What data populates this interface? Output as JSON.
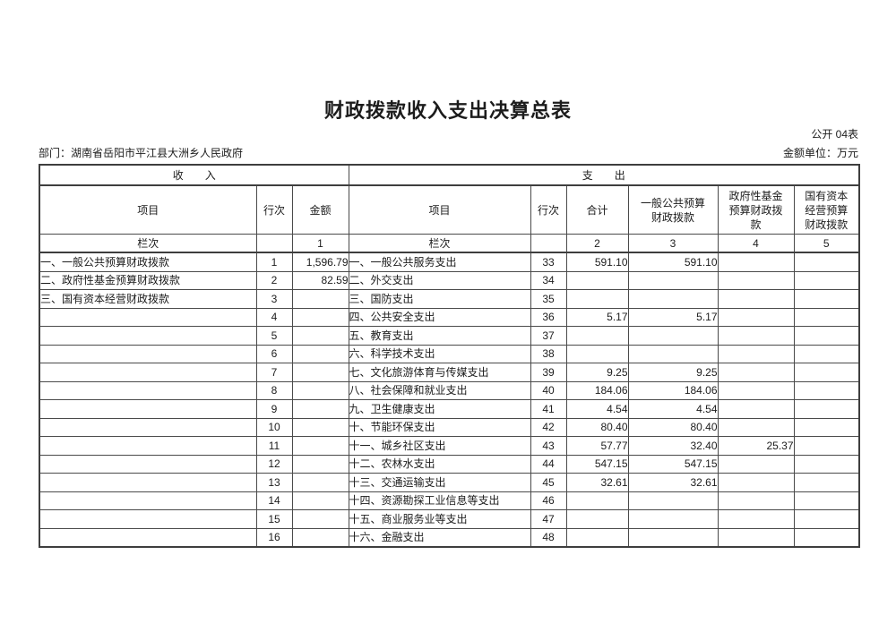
{
  "page": {
    "title": "财政拨款收入支出决算总表",
    "form_code": "公开 04表",
    "department": "部门：湖南省岳阳市平江县大洲乡人民政府",
    "unit_note": "金额单位：万元"
  },
  "table": {
    "sections": {
      "income": "收　　入",
      "expense": "支　　出"
    },
    "headers": {
      "item": "项目",
      "line_no": "行次",
      "amount": "金额",
      "total": "合计",
      "general_budget": "一般公共预算财政拨款",
      "gov_fund": "政府性基金预算财政拨款",
      "state_capital": "国有资本经营预算财政拨款",
      "column_label": "栏次",
      "col_indexes": [
        "1",
        "2",
        "3",
        "4",
        "5"
      ]
    },
    "rows": [
      {
        "income_item": "一、一般公共预算财政拨款",
        "income_line": "1",
        "income_amount": "1,596.79",
        "expense_item": "一、一般公共服务支出",
        "expense_line": "33",
        "total": "591.10",
        "general_budget": "591.10",
        "gov_fund": "",
        "state_capital": ""
      },
      {
        "income_item": "二、政府性基金预算财政拨款",
        "income_line": "2",
        "income_amount": "82.59",
        "expense_item": "二、外交支出",
        "expense_line": "34",
        "total": "",
        "general_budget": "",
        "gov_fund": "",
        "state_capital": ""
      },
      {
        "income_item": "三、国有资本经营财政拨款",
        "income_line": "3",
        "income_amount": "",
        "expense_item": "三、国防支出",
        "expense_line": "35",
        "total": "",
        "general_budget": "",
        "gov_fund": "",
        "state_capital": ""
      },
      {
        "income_item": "",
        "income_line": "4",
        "income_amount": "",
        "expense_item": "四、公共安全支出",
        "expense_line": "36",
        "total": "5.17",
        "general_budget": "5.17",
        "gov_fund": "",
        "state_capital": ""
      },
      {
        "income_item": "",
        "income_line": "5",
        "income_amount": "",
        "expense_item": "五、教育支出",
        "expense_line": "37",
        "total": "",
        "general_budget": "",
        "gov_fund": "",
        "state_capital": ""
      },
      {
        "income_item": "",
        "income_line": "6",
        "income_amount": "",
        "expense_item": "六、科学技术支出",
        "expense_line": "38",
        "total": "",
        "general_budget": "",
        "gov_fund": "",
        "state_capital": ""
      },
      {
        "income_item": "",
        "income_line": "7",
        "income_amount": "",
        "expense_item": "七、文化旅游体育与传媒支出",
        "expense_line": "39",
        "total": "9.25",
        "general_budget": "9.25",
        "gov_fund": "",
        "state_capital": ""
      },
      {
        "income_item": "",
        "income_line": "8",
        "income_amount": "",
        "expense_item": "八、社会保障和就业支出",
        "expense_line": "40",
        "total": "184.06",
        "general_budget": "184.06",
        "gov_fund": "",
        "state_capital": ""
      },
      {
        "income_item": "",
        "income_line": "9",
        "income_amount": "",
        "expense_item": "九、卫生健康支出",
        "expense_line": "41",
        "total": "4.54",
        "general_budget": "4.54",
        "gov_fund": "",
        "state_capital": ""
      },
      {
        "income_item": "",
        "income_line": "10",
        "income_amount": "",
        "expense_item": "十、节能环保支出",
        "expense_line": "42",
        "total": "80.40",
        "general_budget": "80.40",
        "gov_fund": "",
        "state_capital": ""
      },
      {
        "income_item": "",
        "income_line": "11",
        "income_amount": "",
        "expense_item": "十一、城乡社区支出",
        "expense_line": "43",
        "total": "57.77",
        "general_budget": "32.40",
        "gov_fund": "25.37",
        "state_capital": ""
      },
      {
        "income_item": "",
        "income_line": "12",
        "income_amount": "",
        "expense_item": "十二、农林水支出",
        "expense_line": "44",
        "total": "547.15",
        "general_budget": "547.15",
        "gov_fund": "",
        "state_capital": ""
      },
      {
        "income_item": "",
        "income_line": "13",
        "income_amount": "",
        "expense_item": "十三、交通运输支出",
        "expense_line": "45",
        "total": "32.61",
        "general_budget": "32.61",
        "gov_fund": "",
        "state_capital": ""
      },
      {
        "income_item": "",
        "income_line": "14",
        "income_amount": "",
        "expense_item": "十四、资源勘探工业信息等支出",
        "expense_line": "46",
        "total": "",
        "general_budget": "",
        "gov_fund": "",
        "state_capital": ""
      },
      {
        "income_item": "",
        "income_line": "15",
        "income_amount": "",
        "expense_item": "十五、商业服务业等支出",
        "expense_line": "47",
        "total": "",
        "general_budget": "",
        "gov_fund": "",
        "state_capital": ""
      },
      {
        "income_item": "",
        "income_line": "16",
        "income_amount": "",
        "expense_item": "十六、金融支出",
        "expense_line": "48",
        "total": "",
        "general_budget": "",
        "gov_fund": "",
        "state_capital": ""
      }
    ]
  }
}
